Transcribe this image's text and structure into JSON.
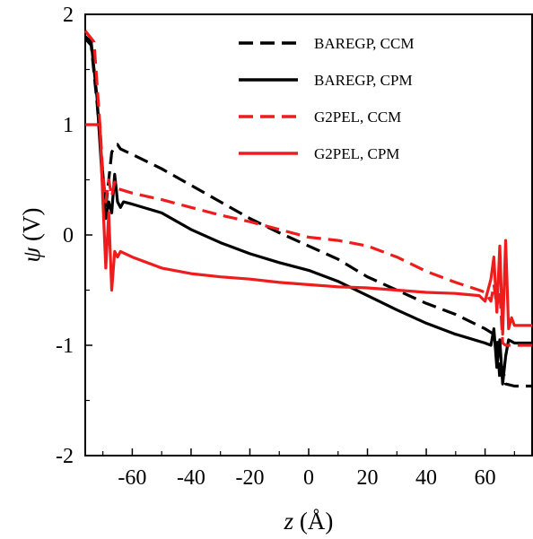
{
  "chart_data": {
    "type": "line",
    "title": "",
    "xlabel": {
      "symbol": "z",
      "unit": " (Å)"
    },
    "ylabel": {
      "symbol": "ψ",
      "unit": " (V)"
    },
    "xlim": [
      -76,
      76
    ],
    "ylim": [
      -2,
      2
    ],
    "x_ticks": [
      -60,
      -40,
      -20,
      0,
      20,
      40,
      60
    ],
    "x_tick_labels": [
      "-60",
      "-40",
      "-20",
      "0",
      "20",
      "40",
      "60"
    ],
    "y_ticks": [
      -2,
      -1,
      0,
      1,
      2
    ],
    "y_tick_labels": [
      "-2",
      "-1",
      "0",
      "1",
      "2"
    ],
    "grid": false,
    "legend_position": "top-right",
    "series": [
      {
        "name": "BAREGP, CCM",
        "color": "#000000",
        "dash": "dashed",
        "points": [
          [
            -76,
            1.78
          ],
          [
            -74,
            1.72
          ],
          [
            -72,
            1.2
          ],
          [
            -70,
            0.55
          ],
          [
            -69,
            0.25
          ],
          [
            -68,
            0.5
          ],
          [
            -67,
            0.75
          ],
          [
            -66,
            0.8
          ],
          [
            -65,
            0.82
          ],
          [
            -64,
            0.78
          ],
          [
            -60,
            0.73
          ],
          [
            -50,
            0.6
          ],
          [
            -40,
            0.45
          ],
          [
            -30,
            0.3
          ],
          [
            -20,
            0.15
          ],
          [
            -10,
            0.02
          ],
          [
            0,
            -0.1
          ],
          [
            10,
            -0.22
          ],
          [
            20,
            -0.38
          ],
          [
            30,
            -0.5
          ],
          [
            40,
            -0.62
          ],
          [
            50,
            -0.72
          ],
          [
            60,
            -0.85
          ],
          [
            63,
            -0.9
          ],
          [
            64,
            -0.95
          ],
          [
            65,
            -1.3
          ],
          [
            66,
            -1.2
          ],
          [
            67,
            -1.35
          ],
          [
            70,
            -1.37
          ],
          [
            76,
            -1.37
          ]
        ]
      },
      {
        "name": "BAREGP, CPM",
        "color": "#000000",
        "dash": "solid",
        "points": [
          [
            -76,
            1.8
          ],
          [
            -74,
            1.75
          ],
          [
            -72,
            1.25
          ],
          [
            -70,
            0.4
          ],
          [
            -69,
            0.15
          ],
          [
            -68,
            0.3
          ],
          [
            -67,
            0.2
          ],
          [
            -66,
            0.55
          ],
          [
            -65,
            0.3
          ],
          [
            -64,
            0.25
          ],
          [
            -63,
            0.3
          ],
          [
            -60,
            0.28
          ],
          [
            -50,
            0.2
          ],
          [
            -40,
            0.05
          ],
          [
            -30,
            -0.07
          ],
          [
            -20,
            -0.17
          ],
          [
            -10,
            -0.25
          ],
          [
            0,
            -0.32
          ],
          [
            10,
            -0.42
          ],
          [
            20,
            -0.55
          ],
          [
            30,
            -0.68
          ],
          [
            40,
            -0.8
          ],
          [
            50,
            -0.9
          ],
          [
            60,
            -0.98
          ],
          [
            62,
            -1.0
          ],
          [
            63,
            -0.85
          ],
          [
            64,
            -1.2
          ],
          [
            65,
            -0.95
          ],
          [
            66,
            -1.35
          ],
          [
            67,
            -1.1
          ],
          [
            68,
            -0.95
          ],
          [
            70,
            -0.98
          ],
          [
            76,
            -0.98
          ]
        ]
      },
      {
        "name": "G2PEL, CCM",
        "color": "#ee1c1c",
        "dash": "dashed",
        "points": [
          [
            -76,
            1.85
          ],
          [
            -73,
            1.75
          ],
          [
            -71,
            1.0
          ],
          [
            -70,
            0.55
          ],
          [
            -69,
            0.3
          ],
          [
            -68,
            0.5
          ],
          [
            -67,
            0.35
          ],
          [
            -66,
            0.48
          ],
          [
            -65,
            0.42
          ],
          [
            -60,
            0.38
          ],
          [
            -50,
            0.32
          ],
          [
            -40,
            0.25
          ],
          [
            -30,
            0.18
          ],
          [
            -20,
            0.12
          ],
          [
            -10,
            0.05
          ],
          [
            0,
            -0.02
          ],
          [
            10,
            -0.05
          ],
          [
            20,
            -0.1
          ],
          [
            30,
            -0.2
          ],
          [
            40,
            -0.33
          ],
          [
            50,
            -0.43
          ],
          [
            58,
            -0.5
          ],
          [
            60,
            -0.52
          ],
          [
            62,
            -0.6
          ],
          [
            63,
            -0.45
          ],
          [
            64,
            -0.65
          ],
          [
            65,
            -0.5
          ],
          [
            66,
            -0.98
          ],
          [
            67,
            -1.0
          ],
          [
            70,
            -1.0
          ],
          [
            76,
            -1.0
          ]
        ]
      },
      {
        "name": "G2PEL, CPM",
        "color": "#ee1c1c",
        "dash": "solid",
        "points": [
          [
            -76,
            1.0
          ],
          [
            -72,
            1.0
          ],
          [
            -71,
            1.0
          ],
          [
            -70,
            0.3
          ],
          [
            -69,
            -0.3
          ],
          [
            -68,
            0.2
          ],
          [
            -67,
            -0.5
          ],
          [
            -66,
            -0.15
          ],
          [
            -65,
            -0.2
          ],
          [
            -64,
            -0.15
          ],
          [
            -60,
            -0.2
          ],
          [
            -50,
            -0.3
          ],
          [
            -40,
            -0.35
          ],
          [
            -30,
            -0.38
          ],
          [
            -20,
            -0.4
          ],
          [
            -10,
            -0.43
          ],
          [
            0,
            -0.45
          ],
          [
            10,
            -0.47
          ],
          [
            20,
            -0.48
          ],
          [
            30,
            -0.5
          ],
          [
            40,
            -0.52
          ],
          [
            50,
            -0.53
          ],
          [
            58,
            -0.55
          ],
          [
            60,
            -0.6
          ],
          [
            62,
            -0.4
          ],
          [
            63,
            -0.2
          ],
          [
            64,
            -0.7
          ],
          [
            65,
            -0.1
          ],
          [
            66,
            -0.9
          ],
          [
            67,
            -0.05
          ],
          [
            68,
            -0.85
          ],
          [
            69,
            -0.75
          ],
          [
            70,
            -0.82
          ],
          [
            76,
            -0.82
          ]
        ]
      }
    ]
  }
}
